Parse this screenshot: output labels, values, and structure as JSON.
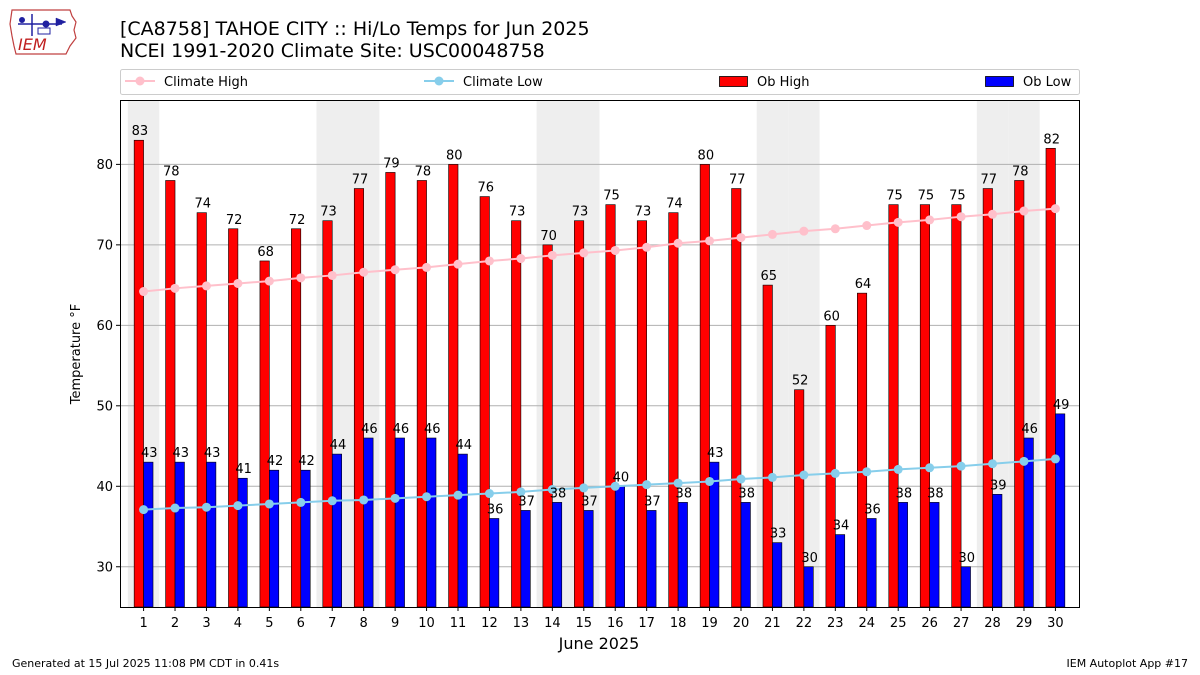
{
  "header": {
    "title_line1": "[CA8758] TAHOE CITY :: Hi/Lo Temps for Jun 2025",
    "title_line2": "NCEI 1991-2020 Climate Site: USC00048758"
  },
  "logo": {
    "text": "IEM"
  },
  "footer": {
    "generated": "Generated at 15 Jul 2025 11:08 PM CDT in 0.41s",
    "app": "IEM Autoplot App #17"
  },
  "legend": {
    "placement": "top, spanning plot width",
    "items": [
      {
        "label": "Climate High",
        "kind": "line",
        "color": "#ffc0cb"
      },
      {
        "label": "Climate Low",
        "kind": "line",
        "color": "#87ceeb"
      },
      {
        "label": "Ob High",
        "kind": "bar",
        "color": "#ff0000"
      },
      {
        "label": "Ob Low",
        "kind": "bar",
        "color": "#0000ff"
      }
    ]
  },
  "chart_data": {
    "type": "bar",
    "title": "[CA8758] TAHOE CITY :: Hi/Lo Temps for Jun 2025",
    "subtitle": "NCEI 1991-2020 Climate Site: USC00048758",
    "xlabel": "June 2025",
    "ylabel": "Temperature °F",
    "ylim": [
      25,
      88
    ],
    "yticks": [
      30,
      40,
      50,
      60,
      70,
      80
    ],
    "grid": "horizontal",
    "weekend_shading_days": [
      1,
      7,
      8,
      14,
      15,
      21,
      22,
      28,
      29
    ],
    "categories": [
      1,
      2,
      3,
      4,
      5,
      6,
      7,
      8,
      9,
      10,
      11,
      12,
      13,
      14,
      15,
      16,
      17,
      18,
      19,
      20,
      21,
      22,
      23,
      24,
      25,
      26,
      27,
      28,
      29,
      30
    ],
    "series": [
      {
        "name": "Ob High",
        "kind": "bar",
        "color": "#ff0000",
        "values": [
          83,
          78,
          74,
          72,
          68,
          72,
          73,
          77,
          79,
          78,
          80,
          76,
          73,
          70,
          73,
          75,
          73,
          74,
          80,
          77,
          65,
          52,
          60,
          64,
          75,
          75,
          75,
          77,
          78,
          82
        ]
      },
      {
        "name": "Ob Low",
        "kind": "bar",
        "color": "#0000ff",
        "values": [
          43,
          43,
          43,
          41,
          42,
          42,
          44,
          46,
          46,
          46,
          44,
          36,
          37,
          38,
          37,
          40,
          37,
          38,
          43,
          38,
          33,
          30,
          34,
          36,
          38,
          38,
          30,
          39,
          46,
          49
        ]
      },
      {
        "name": "Climate High",
        "kind": "line",
        "color": "#ffc0cb",
        "values": [
          64.2,
          64.6,
          64.9,
          65.2,
          65.5,
          65.9,
          66.2,
          66.6,
          66.9,
          67.2,
          67.6,
          68.0,
          68.3,
          68.7,
          69.0,
          69.3,
          69.7,
          70.2,
          70.5,
          70.9,
          71.3,
          71.7,
          72.0,
          72.4,
          72.8,
          73.1,
          73.5,
          73.8,
          74.2,
          74.5
        ]
      },
      {
        "name": "Climate Low",
        "kind": "line",
        "color": "#87ceeb",
        "values": [
          37.1,
          37.3,
          37.4,
          37.6,
          37.8,
          38.0,
          38.2,
          38.3,
          38.5,
          38.7,
          38.9,
          39.1,
          39.3,
          39.6,
          39.8,
          40.0,
          40.2,
          40.4,
          40.6,
          40.9,
          41.1,
          41.4,
          41.6,
          41.8,
          42.1,
          42.3,
          42.5,
          42.8,
          43.1,
          43.4
        ]
      }
    ]
  }
}
